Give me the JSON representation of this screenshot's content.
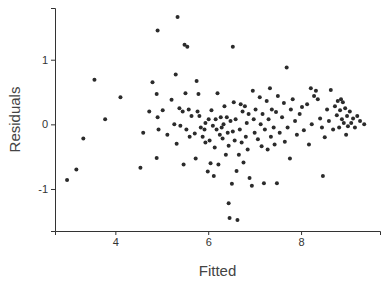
{
  "chart_data": {
    "type": "scatter",
    "x_label": "Fitted",
    "y_label": "Residuals",
    "color": "#2b2b2b",
    "xlim": [
      2.7,
      9.7
    ],
    "xticks": [
      4,
      6,
      8
    ],
    "ylim": [
      -1.65,
      1.8
    ],
    "yticks": [
      -1,
      0,
      1
    ],
    "x": [
      2.96,
      3.16,
      3.31,
      3.55,
      3.78,
      4.11,
      4.54,
      4.6,
      4.73,
      4.8,
      4.89,
      4.91,
      4.93,
      4.89,
      4.91,
      5.02,
      5.12,
      5.21,
      5.27,
      5.3,
      5.32,
      5.34,
      5.38,
      5.4,
      5.45,
      5.47,
      5.49,
      5.51,
      5.53,
      5.55,
      5.58,
      5.6,
      5.64,
      5.71,
      5.73,
      5.75,
      5.77,
      5.79,
      5.81,
      5.84,
      5.88,
      5.92,
      5.94,
      5.94,
      5.99,
      6.01,
      6.03,
      6.05,
      6.07,
      6.1,
      6.12,
      6.14,
      6.16,
      6.18,
      6.2,
      6.22,
      6.25,
      6.27,
      6.29,
      6.31,
      6.33,
      6.35,
      6.38,
      6.4,
      6.42,
      6.44,
      6.44,
      6.46,
      6.48,
      6.51,
      6.53,
      6.53,
      6.55,
      6.57,
      6.59,
      6.61,
      6.63,
      6.66,
      6.68,
      6.7,
      6.72,
      6.74,
      6.76,
      6.79,
      6.81,
      6.83,
      6.85,
      6.87,
      6.89,
      6.94,
      6.96,
      6.98,
      7.0,
      7.02,
      7.07,
      7.11,
      7.13,
      7.15,
      7.17,
      7.2,
      7.22,
      7.26,
      7.28,
      7.3,
      7.33,
      7.35,
      7.37,
      7.41,
      7.43,
      7.46,
      7.48,
      7.5,
      7.54,
      7.59,
      7.63,
      7.65,
      7.69,
      7.71,
      7.76,
      7.78,
      7.82,
      7.87,
      7.91,
      7.97,
      8.02,
      8.06,
      8.13,
      8.17,
      8.21,
      8.23,
      8.28,
      8.32,
      8.36,
      8.41,
      8.45,
      8.47,
      8.51,
      8.56,
      8.6,
      8.64,
      8.69,
      8.73,
      8.77,
      8.79,
      8.82,
      8.84,
      8.86,
      8.88,
      8.9,
      8.92,
      8.95,
      8.97,
      8.99,
      9.01,
      9.05,
      9.08,
      9.12,
      9.16,
      9.21,
      9.27,
      9.36
    ],
    "y": [
      -0.86,
      -0.7,
      -0.22,
      0.69,
      0.08,
      0.42,
      -0.67,
      -0.13,
      0.2,
      0.65,
      0.47,
      0.11,
      -0.08,
      -0.52,
      1.45,
      0.22,
      -0.16,
      0.38,
      0.0,
      0.77,
      -0.3,
      1.66,
      0.25,
      -0.02,
      0.2,
      -0.62,
      1.23,
      0.48,
      -0.08,
      1.2,
      0.23,
      -0.19,
      0.13,
      -0.14,
      -0.53,
      0.67,
      0.2,
      0.47,
      0.13,
      -0.05,
      -0.19,
      -0.08,
      0.02,
      -0.28,
      -0.73,
      0.08,
      -0.25,
      -0.6,
      0.22,
      -0.02,
      -0.8,
      -0.36,
      0.08,
      -0.08,
      0.48,
      -0.62,
      -0.16,
      0.11,
      -0.05,
      -0.22,
      0.0,
      0.28,
      -0.47,
      0.11,
      -0.13,
      -1.22,
      -0.33,
      -1.45,
      0.05,
      -0.92,
      -0.11,
      1.2,
      0.34,
      -0.25,
      0.08,
      -0.72,
      -1.48,
      -0.47,
      -0.08,
      0.31,
      -0.28,
      0.2,
      -0.59,
      0.28,
      -0.19,
      0.02,
      -0.39,
      0.16,
      -0.83,
      -0.95,
      0.52,
      0.08,
      -0.13,
      0.23,
      -0.23,
      0.42,
      0.0,
      -0.34,
      0.16,
      -0.91,
      -0.08,
      0.36,
      -0.39,
      0.08,
      0.56,
      -0.19,
      0.23,
      -0.05,
      -0.31,
      0.19,
      -0.91,
      0.44,
      -0.13,
      0.11,
      0.33,
      -0.27,
      0.88,
      -0.05,
      -0.53,
      0.23,
      0.39,
      0.05,
      -0.16,
      0.16,
      0.27,
      -0.09,
      0.31,
      -0.31,
      0.56,
      0.0,
      0.44,
      0.52,
      0.39,
      0.09,
      -0.05,
      -0.8,
      -0.2,
      0.23,
      0.05,
      0.53,
      -0.08,
      0.28,
      0.14,
      0.36,
      -0.05,
      0.22,
      0.39,
      0.08,
      0.34,
      0.02,
      0.25,
      -0.16,
      0.13,
      -0.03,
      0.2,
      0.02,
      0.09,
      -0.05,
      0.13,
      0.05,
      0.0
    ]
  }
}
